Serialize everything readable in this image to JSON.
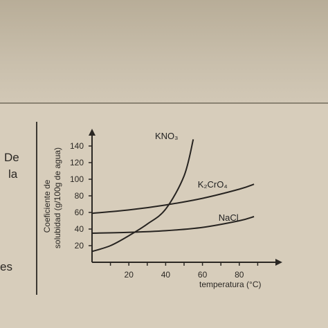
{
  "page": {
    "left_words": [
      "De",
      "la",
      "es"
    ]
  },
  "chart_data": {
    "type": "line",
    "ylabel_line1": "Coeficiente de",
    "ylabel_line2": "solubidad  (g/100g de agua)",
    "xlabel": "temperatura (°C)",
    "xlim": [
      0,
      100
    ],
    "ylim": [
      0,
      160
    ],
    "x_ticks": [
      20,
      40,
      60,
      80
    ],
    "y_ticks": [
      20,
      40,
      60,
      80,
      100,
      120,
      140
    ],
    "series": [
      {
        "name": "KNO₃",
        "x": [
          0,
          10,
          20,
          30,
          40,
          50,
          55
        ],
        "y": [
          13,
          20,
          32,
          46,
          64,
          104,
          148
        ]
      },
      {
        "name": "K₂CrO₄",
        "x": [
          0,
          20,
          40,
          60,
          80,
          88
        ],
        "y": [
          59,
          63,
          69,
          77,
          88,
          94
        ]
      },
      {
        "name": "NaCl",
        "x": [
          0,
          20,
          40,
          60,
          80,
          88
        ],
        "y": [
          35,
          36,
          38,
          42,
          50,
          55
        ]
      }
    ]
  }
}
